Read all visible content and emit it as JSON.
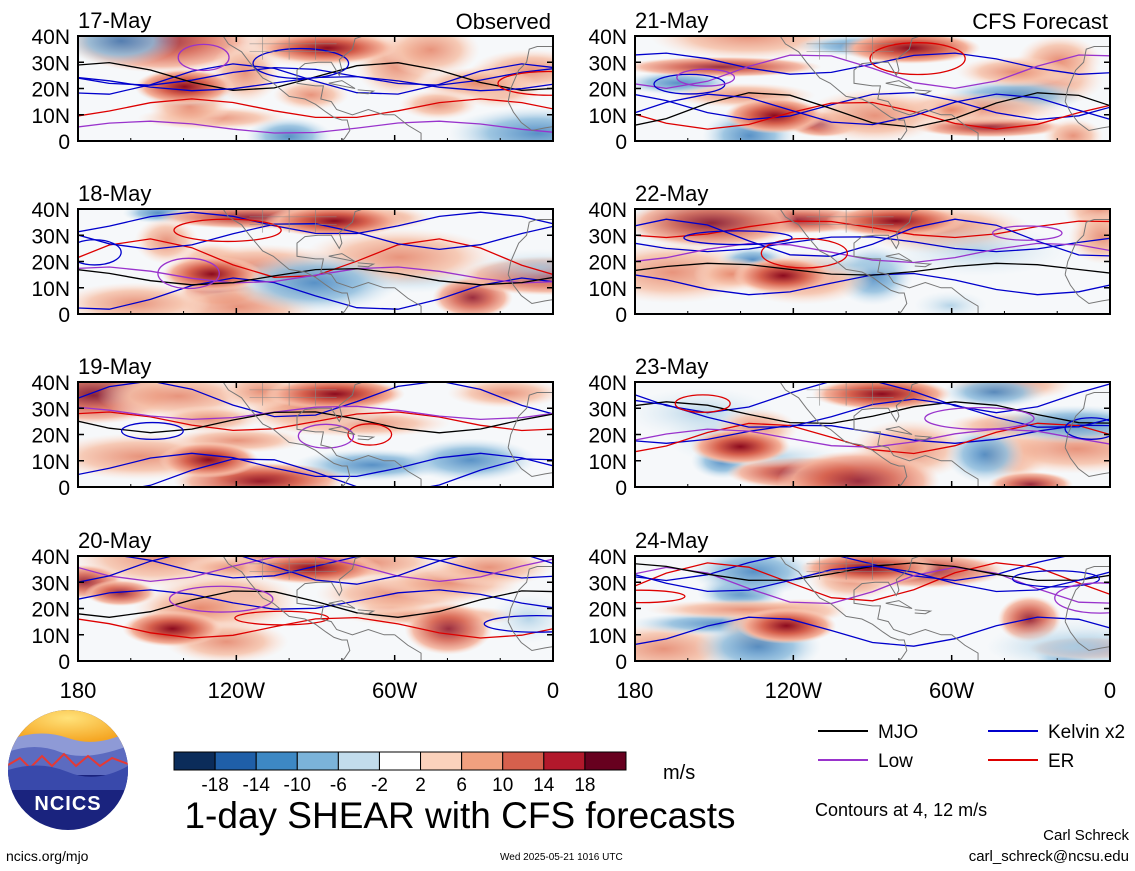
{
  "column_headers": [
    "Observed",
    "CFS Forecast"
  ],
  "panels": [
    {
      "date": "17-May",
      "column": 0,
      "row": 0
    },
    {
      "date": "18-May",
      "column": 0,
      "row": 1
    },
    {
      "date": "19-May",
      "column": 0,
      "row": 2
    },
    {
      "date": "20-May",
      "column": 0,
      "row": 3
    },
    {
      "date": "21-May",
      "column": 1,
      "row": 0
    },
    {
      "date": "22-May",
      "column": 1,
      "row": 1
    },
    {
      "date": "23-May",
      "column": 1,
      "row": 2
    },
    {
      "date": "24-May",
      "column": 1,
      "row": 3
    }
  ],
  "chart_data": {
    "type": "heatmap",
    "title": "1-day SHEAR with CFS forecasts",
    "y_ticks": [
      "40N",
      "30N",
      "20N",
      "10N",
      "0"
    ],
    "x_ticks": [
      "180",
      "120W",
      "60W",
      "0"
    ],
    "units": "m/s",
    "colorbar": {
      "tick_labels": [
        "-18",
        "-14",
        "-10",
        "-6",
        "-2",
        "2",
        "6",
        "10",
        "14",
        "18"
      ],
      "colors": [
        "#0b2c5a",
        "#1f5fa8",
        "#3d88c4",
        "#7bb3d9",
        "#c2dcec",
        "#ffffff",
        "#fbd2bc",
        "#f1a07f",
        "#d6604d",
        "#b2182b",
        "#67001f"
      ]
    },
    "legend": [
      {
        "label": "MJO",
        "color": "#000000"
      },
      {
        "label": "Kelvin x2",
        "color": "#0000cc"
      },
      {
        "label": "Low",
        "color": "#9933cc"
      },
      {
        "label": "ER",
        "color": "#dd0000"
      }
    ],
    "contour_note": "Contours at 4, 12 m/s"
  },
  "footer": {
    "logo_text": "NCICS",
    "url": "ncics.org/mjo",
    "timestamp": "Wed 2025-05-21 1016 UTC",
    "author": "Carl Schreck",
    "email": "carl_schreck@ncsu.edu"
  }
}
